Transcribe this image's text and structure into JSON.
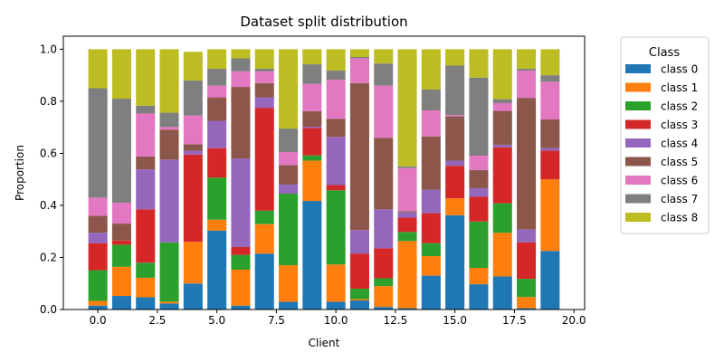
{
  "chart_data": {
    "type": "bar",
    "stacked": true,
    "title": "Dataset split distribution",
    "xlabel": "Client",
    "ylabel": "Proportion",
    "xlim": [
      -1.45,
      20.45
    ],
    "ylim": [
      0,
      1.05
    ],
    "x": [
      0,
      1,
      2,
      3,
      4,
      5,
      6,
      7,
      8,
      9,
      10,
      11,
      12,
      13,
      14,
      15,
      16,
      17,
      18,
      19
    ],
    "xticks": [
      0.0,
      2.5,
      5.0,
      7.5,
      10.0,
      12.5,
      15.0,
      17.5,
      20.0
    ],
    "xtick_labels": [
      "0.0",
      "2.5",
      "5.0",
      "7.5",
      "10.0",
      "12.5",
      "15.0",
      "17.5",
      "20.0"
    ],
    "yticks": [
      0.0,
      0.2,
      0.4,
      0.6,
      0.8,
      1.0
    ],
    "ytick_labels": [
      "0.0",
      "0.2",
      "0.4",
      "0.6",
      "0.8",
      "1.0"
    ],
    "grid": false,
    "legend": {
      "title": "Class",
      "placement": "outside right"
    },
    "series": [
      {
        "name": "class 0",
        "color": "#1f77b4",
        "values": [
          0.015,
          0.052,
          0.047,
          0.023,
          0.1,
          0.303,
          0.015,
          0.215,
          0.03,
          0.417,
          0.03,
          0.035,
          0.01,
          0.005,
          0.13,
          0.362,
          0.097,
          0.127,
          0.005,
          0.225
        ]
      },
      {
        "name": "class 1",
        "color": "#ff7f0e",
        "values": [
          0.018,
          0.112,
          0.075,
          0.007,
          0.16,
          0.042,
          0.138,
          0.113,
          0.14,
          0.155,
          0.143,
          0.005,
          0.08,
          0.258,
          0.075,
          0.065,
          0.063,
          0.168,
          0.043,
          0.275
        ]
      },
      {
        "name": "class 2",
        "color": "#2ca02c",
        "values": [
          0.118,
          0.085,
          0.058,
          0.228,
          0.0,
          0.162,
          0.057,
          0.052,
          0.275,
          0.02,
          0.285,
          0.04,
          0.03,
          0.035,
          0.05,
          0.0,
          0.178,
          0.113,
          0.07,
          0.0
        ]
      },
      {
        "name": "class 3",
        "color": "#d62728",
        "values": [
          0.104,
          0.016,
          0.205,
          0.0,
          0.335,
          0.113,
          0.03,
          0.395,
          0.0,
          0.105,
          0.02,
          0.135,
          0.115,
          0.055,
          0.115,
          0.125,
          0.095,
          0.215,
          0.14,
          0.11
        ]
      },
      {
        "name": "class 4",
        "color": "#9467bd",
        "values": [
          0.04,
          0.0,
          0.153,
          0.318,
          0.015,
          0.105,
          0.34,
          0.04,
          0.035,
          0.005,
          0.185,
          0.09,
          0.15,
          0.02,
          0.09,
          0.02,
          0.033,
          0.01,
          0.05,
          0.01
        ]
      },
      {
        "name": "class 5",
        "color": "#8c564b",
        "values": [
          0.065,
          0.065,
          0.05,
          0.115,
          0.025,
          0.09,
          0.275,
          0.055,
          0.075,
          0.06,
          0.07,
          0.565,
          0.275,
          0.005,
          0.205,
          0.17,
          0.07,
          0.13,
          0.505,
          0.11
        ]
      },
      {
        "name": "class 6",
        "color": "#e377c2",
        "values": [
          0.07,
          0.08,
          0.165,
          0.01,
          0.11,
          0.045,
          0.06,
          0.045,
          0.05,
          0.105,
          0.15,
          0.095,
          0.2,
          0.165,
          0.1,
          0.005,
          0.055,
          0.03,
          0.105,
          0.145
        ]
      },
      {
        "name": "class 7",
        "color": "#7f7f7f",
        "values": [
          0.42,
          0.4,
          0.03,
          0.055,
          0.135,
          0.065,
          0.05,
          0.01,
          0.09,
          0.075,
          0.035,
          0.005,
          0.085,
          0.007,
          0.08,
          0.19,
          0.3,
          0.015,
          0.007,
          0.025
        ]
      },
      {
        "name": "class 8",
        "color": "#bcbd22",
        "values": [
          0.15,
          0.19,
          0.217,
          0.244,
          0.11,
          0.075,
          0.035,
          0.075,
          0.305,
          0.058,
          0.082,
          0.03,
          0.055,
          0.45,
          0.155,
          0.063,
          0.109,
          0.192,
          0.075,
          0.1
        ]
      }
    ]
  }
}
